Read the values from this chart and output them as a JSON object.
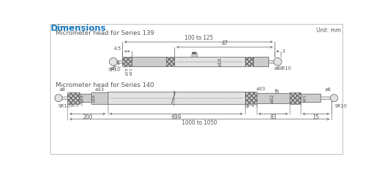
{
  "title": "Dimensions",
  "title_color": "#1a7abf",
  "unit_text": "Unit: mm",
  "bg_color": "#ffffff",
  "border_color": "#aaaaaa",
  "series139_label": "Micrometer head for Series 139",
  "series140_label": "Micrometer head for Series 140",
  "draw_color": "#999999",
  "draw_color_dark": "#666666",
  "dim_color": "#555555",
  "body_fill": "#cccccc",
  "body_fill_light": "#e2e2e2",
  "knurl_fill": "#aaaaaa",
  "knurl_hatch": "body_fill_dark"
}
